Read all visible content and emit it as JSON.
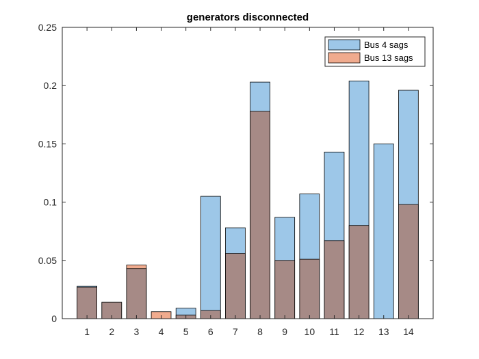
{
  "chart_data": {
    "type": "bar",
    "title": "generators disconnected",
    "xlabel": "",
    "ylabel": "",
    "categories": [
      "1",
      "2",
      "3",
      "4",
      "5",
      "6",
      "7",
      "8",
      "9",
      "10",
      "11",
      "12",
      "13",
      "14"
    ],
    "ylim": [
      0,
      0.25
    ],
    "yticks": [
      "0",
      "0.05",
      "0.1",
      "0.15",
      "0.2",
      "0.25"
    ],
    "legend_position": "top-right",
    "grid": false,
    "overlay": true,
    "series": [
      {
        "name": "Bus 4 sags",
        "color": "#9DC7E8",
        "values": [
          0.028,
          0.014,
          0.043,
          0.0,
          0.009,
          0.105,
          0.078,
          0.203,
          0.087,
          0.107,
          0.143,
          0.204,
          0.15,
          0.196
        ]
      },
      {
        "name": "Bus 13 sags",
        "color": "#F0AB8E",
        "values": [
          0.027,
          0.014,
          0.046,
          0.006,
          0.003,
          0.007,
          0.056,
          0.178,
          0.05,
          0.051,
          0.067,
          0.08,
          0.0,
          0.098
        ]
      }
    ],
    "overlap_color": "#A68A86"
  }
}
